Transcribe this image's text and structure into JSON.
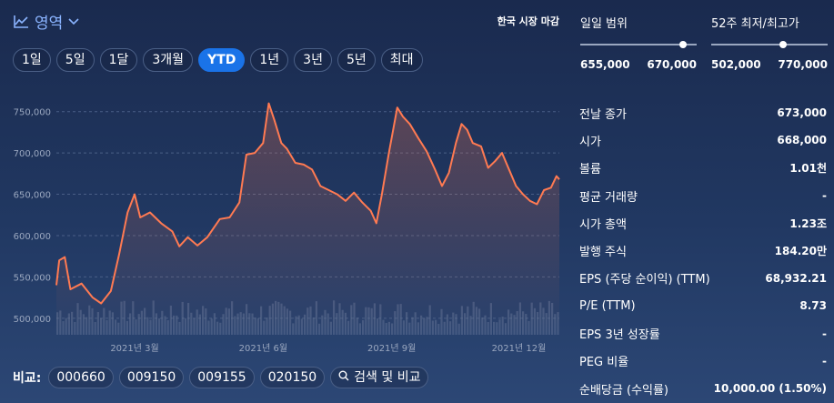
{
  "chart": {
    "type_label": "영역",
    "market_status": "한국 시장 마감",
    "ranges": [
      {
        "label": "1일",
        "active": false
      },
      {
        "label": "5일",
        "active": false
      },
      {
        "label": "1달",
        "active": false
      },
      {
        "label": "3개월",
        "active": false
      },
      {
        "label": "YTD",
        "active": true
      },
      {
        "label": "1년",
        "active": false
      },
      {
        "label": "3년",
        "active": false
      },
      {
        "label": "5년",
        "active": false
      },
      {
        "label": "최대",
        "active": false
      }
    ],
    "compare_label": "비교:",
    "compare_items": [
      "000660",
      "009150",
      "009155",
      "020150"
    ],
    "search_label": "검색 및 비교"
  },
  "chart_data": {
    "type": "area",
    "line_color": "#ff7a52",
    "y_ticks": [
      {
        "value": 750000,
        "label": "750,000"
      },
      {
        "value": 700000,
        "label": "700,000"
      },
      {
        "value": 650000,
        "label": "650,000"
      },
      {
        "value": 600000,
        "label": "600,000"
      },
      {
        "value": 550000,
        "label": "550,000"
      },
      {
        "value": 500000,
        "label": "500,000"
      }
    ],
    "ylim": [
      480000,
      775000
    ],
    "x_range": [
      "2021-01-04",
      "2021-12-30"
    ],
    "x_ticks": [
      {
        "date": "2021-03-01",
        "label": "2021년 3월"
      },
      {
        "date": "2021-06-01",
        "label": "2021년 6월"
      },
      {
        "date": "2021-09-01",
        "label": "2021년 9월"
      },
      {
        "date": "2021-12-01",
        "label": "2021년 12월"
      }
    ],
    "points": [
      [
        "2021-01-04",
        540000
      ],
      [
        "2021-01-06",
        570000
      ],
      [
        "2021-01-10",
        574000
      ],
      [
        "2021-01-14",
        535000
      ],
      [
        "2021-01-22",
        542000
      ],
      [
        "2021-01-30",
        525000
      ],
      [
        "2021-02-05",
        518000
      ],
      [
        "2021-02-12",
        533000
      ],
      [
        "2021-02-18",
        578000
      ],
      [
        "2021-02-24",
        628000
      ],
      [
        "2021-03-01",
        650000
      ],
      [
        "2021-03-05",
        622000
      ],
      [
        "2021-03-12",
        628000
      ],
      [
        "2021-03-20",
        615000
      ],
      [
        "2021-03-28",
        605000
      ],
      [
        "2021-04-02",
        587000
      ],
      [
        "2021-04-08",
        598000
      ],
      [
        "2021-04-15",
        588000
      ],
      [
        "2021-04-22",
        598000
      ],
      [
        "2021-05-01",
        620000
      ],
      [
        "2021-05-08",
        622000
      ],
      [
        "2021-05-15",
        640000
      ],
      [
        "2021-05-20",
        698000
      ],
      [
        "2021-05-26",
        700000
      ],
      [
        "2021-06-01",
        712000
      ],
      [
        "2021-06-05",
        760000
      ],
      [
        "2021-06-09",
        740000
      ],
      [
        "2021-06-14",
        712000
      ],
      [
        "2021-06-18",
        705000
      ],
      [
        "2021-06-24",
        688000
      ],
      [
        "2021-06-30",
        686000
      ],
      [
        "2021-07-06",
        680000
      ],
      [
        "2021-07-12",
        660000
      ],
      [
        "2021-07-18",
        655000
      ],
      [
        "2021-07-24",
        650000
      ],
      [
        "2021-07-30",
        642000
      ],
      [
        "2021-08-05",
        652000
      ],
      [
        "2021-08-11",
        640000
      ],
      [
        "2021-08-17",
        630000
      ],
      [
        "2021-08-21",
        615000
      ],
      [
        "2021-08-25",
        650000
      ],
      [
        "2021-08-30",
        700000
      ],
      [
        "2021-09-05",
        755000
      ],
      [
        "2021-09-09",
        744000
      ],
      [
        "2021-09-14",
        735000
      ],
      [
        "2021-09-20",
        718000
      ],
      [
        "2021-09-26",
        702000
      ],
      [
        "2021-10-02",
        680000
      ],
      [
        "2021-10-07",
        660000
      ],
      [
        "2021-10-12",
        676000
      ],
      [
        "2021-10-17",
        712000
      ],
      [
        "2021-10-21",
        735000
      ],
      [
        "2021-10-25",
        728000
      ],
      [
        "2021-10-29",
        712000
      ],
      [
        "2021-11-04",
        708000
      ],
      [
        "2021-11-09",
        682000
      ],
      [
        "2021-11-14",
        690000
      ],
      [
        "2021-11-19",
        700000
      ],
      [
        "2021-11-24",
        680000
      ],
      [
        "2021-11-29",
        660000
      ],
      [
        "2021-12-04",
        650000
      ],
      [
        "2021-12-09",
        642000
      ],
      [
        "2021-12-14",
        638000
      ],
      [
        "2021-12-19",
        655000
      ],
      [
        "2021-12-24",
        658000
      ],
      [
        "2021-12-28",
        672000
      ],
      [
        "2021-12-30",
        668000
      ]
    ]
  },
  "side": {
    "day_range": {
      "title": "일일 범위",
      "low": "655,000",
      "high": "670,000",
      "marker": 0.88
    },
    "year_range": {
      "title": "52주 최저/최고가",
      "low": "502,000",
      "high": "770,000",
      "marker": 0.62
    },
    "stats": [
      {
        "label": "전날 종가",
        "value": "673,000"
      },
      {
        "label": "시가",
        "value": "668,000"
      },
      {
        "label": "볼륨",
        "value": "1.01천"
      },
      {
        "label": "평균 거래량",
        "value": "-"
      },
      {
        "label": "시가 총액",
        "value": "1.23조"
      },
      {
        "label": "발행 주식",
        "value": "184.20만"
      },
      {
        "label": "EPS (주당 순이익) (TTM)",
        "value": "68,932.21"
      },
      {
        "label": "P/E (TTM)",
        "value": "8.73"
      },
      {
        "label": "EPS 3년 성장률",
        "value": "-"
      },
      {
        "label": "PEG 비율",
        "value": "-"
      },
      {
        "label": "순배당금 (수익률)",
        "value": "10,000.00 (1.50%)"
      }
    ]
  }
}
